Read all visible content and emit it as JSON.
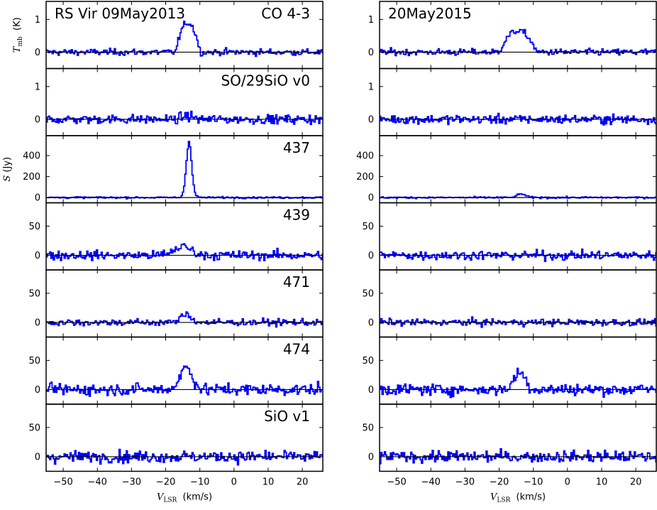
{
  "colors": {
    "trace": "#0000ff",
    "axis": "#000000",
    "zero": "#000000"
  },
  "chart_data": {
    "type": "line",
    "style": "step",
    "xlim": [
      -55,
      26
    ],
    "x_ticks": [
      -50,
      -40,
      -30,
      -20,
      -10,
      0,
      10,
      20
    ],
    "x_tick_labels": [
      "−50",
      "−40",
      "−30",
      "−20",
      "−10",
      "0",
      "10",
      "20"
    ],
    "xlabel": {
      "main": "V",
      "sub": "LSR",
      "unit": "(km/s)"
    },
    "ylabels": [
      {
        "main": "T",
        "sub": "mb",
        "unit": "(K)"
      },
      {
        "main": "S",
        "sub": "",
        "unit": "(Jy)"
      }
    ],
    "columns": [
      {
        "epoch_label": "RS Vir 09May2013"
      },
      {
        "epoch_label": "20May2015"
      }
    ],
    "rows": [
      {
        "line_label": "CO 4-3",
        "ylim": [
          -0.5,
          1.55
        ],
        "y_ticks": [
          0,
          1
        ],
        "y_tick_labels": [
          "0",
          "1"
        ],
        "noise": 0.05,
        "profiles": [
          {
            "peak": 0.9,
            "center": -13.5,
            "width": 3.6,
            "shape": "para"
          },
          {
            "peak": 0.65,
            "center": -14.5,
            "width": 5.5,
            "shape": "para"
          }
        ]
      },
      {
        "line_label": "SO/29SiO v0",
        "ylim": [
          -0.5,
          1.55
        ],
        "y_ticks": [
          0,
          1
        ],
        "y_tick_labels": [
          "0",
          "1"
        ],
        "noise": 0.07,
        "profiles": [
          {
            "peak": 0.1,
            "center": -13.5,
            "width": 3,
            "shape": "para"
          },
          {
            "peak": 0.0,
            "center": -14,
            "width": 3,
            "shape": "para"
          }
        ]
      },
      {
        "line_label": "437",
        "ylim": [
          -50,
          590
        ],
        "y_ticks": [
          0,
          200,
          400
        ],
        "y_tick_labels": [
          "0",
          "200",
          "400"
        ],
        "noise": 4,
        "profiles": [
          {
            "peak": 505,
            "center": -13.2,
            "width": 0.8,
            "shape": "gauss"
          },
          {
            "peak": 35,
            "center": -13.5,
            "width": 1.2,
            "shape": "gauss"
          }
        ]
      },
      {
        "line_label": "439",
        "ylim": [
          -25,
          90
        ],
        "y_ticks": [
          0,
          50
        ],
        "y_tick_labels": [
          "0",
          "50"
        ],
        "noise": 4,
        "profiles": [
          {
            "peak": 15,
            "center": -15,
            "width": 2.5,
            "shape": "gauss"
          },
          {
            "peak": 0,
            "center": -14,
            "width": 2,
            "shape": "gauss"
          }
        ]
      },
      {
        "line_label": "471",
        "ylim": [
          -25,
          90
        ],
        "y_ticks": [
          0,
          50
        ],
        "y_tick_labels": [
          "0",
          "50"
        ],
        "noise": 3,
        "profiles": [
          {
            "peak": 14,
            "center": -14,
            "width": 1.5,
            "shape": "gauss"
          },
          {
            "peak": 0,
            "center": -14,
            "width": 2,
            "shape": "gauss"
          }
        ]
      },
      {
        "line_label": "474",
        "ylim": [
          -25,
          90
        ],
        "y_ticks": [
          0,
          50
        ],
        "y_tick_labels": [
          "0",
          "50"
        ],
        "noise": 5,
        "profiles": [
          {
            "peak": 38,
            "center": -14,
            "width": 1.8,
            "shape": "gauss"
          },
          {
            "peak": 30,
            "center": -14,
            "width": 1.6,
            "shape": "gauss"
          }
        ]
      },
      {
        "line_label": "SiO v1",
        "ylim": [
          -25,
          90
        ],
        "y_ticks": [
          0,
          50
        ],
        "y_tick_labels": [
          "0",
          "50"
        ],
        "noise": 5,
        "profiles": [
          {
            "peak": 0,
            "center": -14,
            "width": 2,
            "shape": "gauss"
          },
          {
            "peak": 0,
            "center": -14,
            "width": 2,
            "shape": "gauss"
          }
        ]
      }
    ]
  }
}
